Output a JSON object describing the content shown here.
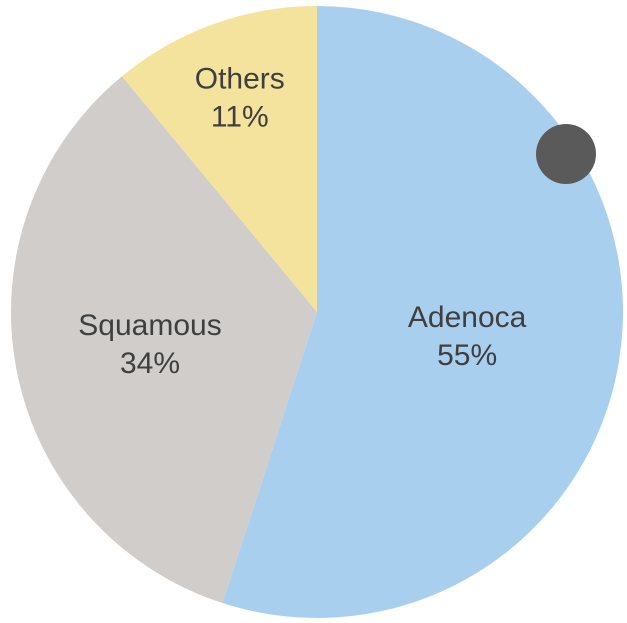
{
  "chart_data": {
    "type": "pie",
    "title": "",
    "slices": [
      {
        "name": "Adenoca",
        "value": 55,
        "value_label": "55%",
        "color": "#a9cfee"
      },
      {
        "name": "Squamous",
        "value": 34,
        "value_label": "34%",
        "color": "#d0cdcb"
      },
      {
        "name": "Others",
        "value": 11,
        "value_label": "11%",
        "color": "#f3e39d"
      }
    ],
    "start": "12 o'clock",
    "direction": "clockwise",
    "legend": "none",
    "marker": {
      "color": "#5a5a5a",
      "shape": "circle"
    }
  }
}
